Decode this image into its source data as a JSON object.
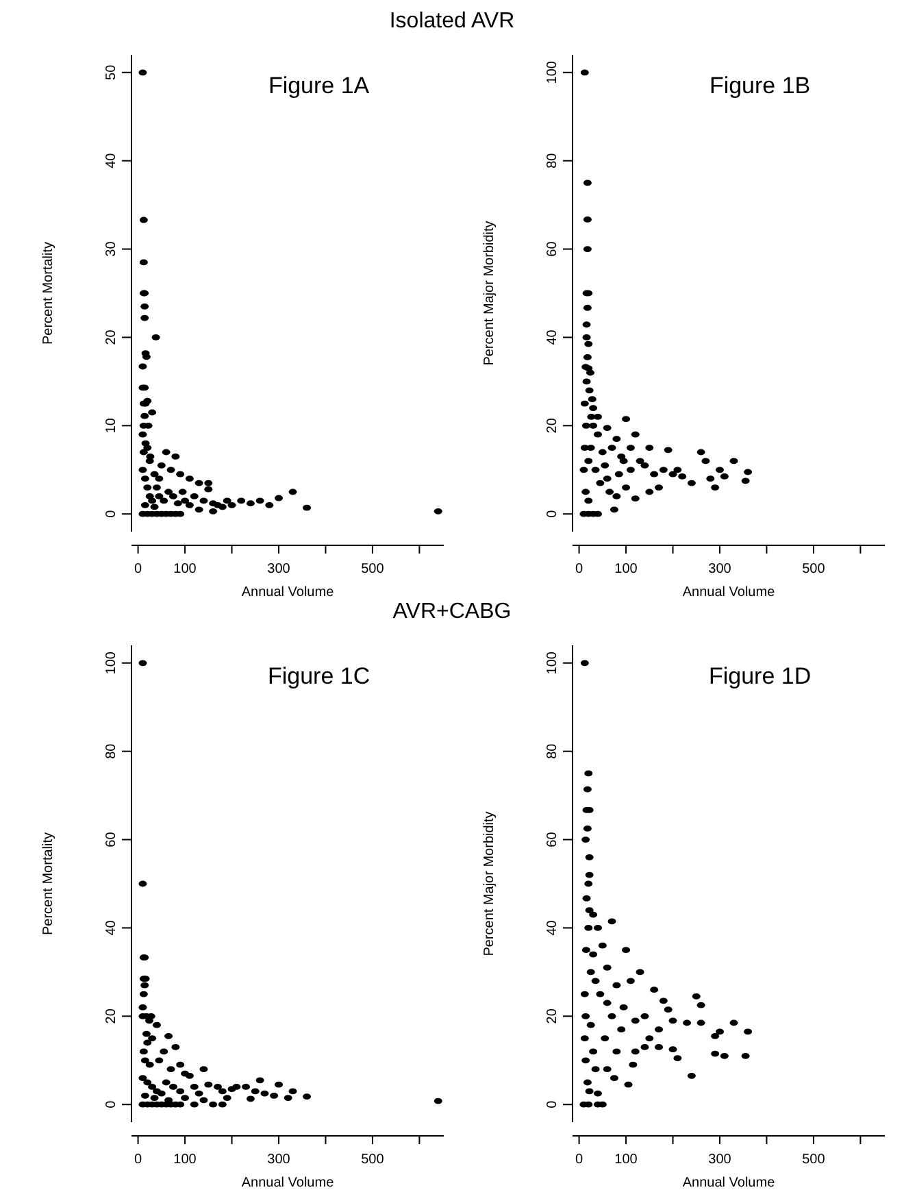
{
  "chart_data": [
    {
      "type": "scatter",
      "title": "Figure 1A",
      "xlabel": "Annual Volume",
      "ylabel": "Percent Mortality",
      "annotations": [
        "Isolated AVR"
      ],
      "marker": "circle",
      "xlim": [
        -14,
        652
      ],
      "ylim": [
        -2,
        52
      ],
      "xticks": [
        0,
        100,
        {
          "value": 200,
          "label": null
        },
        300,
        {
          "value": 400,
          "label": null
        },
        500,
        {
          "value": 600,
          "label": null
        }
      ],
      "yticks": [
        0,
        10,
        20,
        30,
        40,
        50
      ],
      "series": [
        {
          "color": "#000000",
          "x": [
            10,
            12,
            12,
            12,
            14,
            14,
            14,
            38,
            16,
            18,
            10,
            10,
            14,
            16,
            20,
            12,
            30,
            14,
            12,
            22,
            10,
            16,
            12,
            20,
            26,
            60,
            80,
            50,
            70,
            90,
            110,
            130,
            150,
            10,
            15,
            20,
            25,
            30,
            40,
            45,
            55,
            65,
            75,
            85,
            95,
            100,
            120,
            140,
            160,
            170,
            180,
            190,
            200,
            220,
            240,
            260,
            280,
            300,
            330,
            360,
            640,
            10,
            20,
            30,
            40,
            50,
            60,
            70,
            80,
            90,
            15,
            35,
            25,
            35,
            45,
            110,
            150,
            130,
            160
          ],
          "values": [
            50,
            33.3,
            28.5,
            25,
            25,
            23.5,
            22.2,
            20,
            18.2,
            17.8,
            16.7,
            14.3,
            14.3,
            12.5,
            12.8,
            12.5,
            11.5,
            11.1,
            10,
            10,
            9,
            8,
            7,
            7.5,
            6.5,
            7,
            6.5,
            5.5,
            5,
            4.5,
            4,
            3.5,
            3.5,
            5,
            4,
            3,
            2,
            1.5,
            3,
            2,
            1.5,
            2.5,
            2,
            1.2,
            2.5,
            1.5,
            2,
            1.5,
            1.2,
            1,
            0.8,
            1.5,
            1,
            1.5,
            1.2,
            1.5,
            1,
            1.8,
            2.5,
            0.7,
            0.3,
            0,
            0,
            0,
            0,
            0,
            0,
            0,
            0,
            0,
            1,
            0.8,
            6,
            4.5,
            4,
            1,
            2.8,
            0.5,
            0.3
          ]
        }
      ]
    },
    {
      "type": "scatter",
      "title": "Figure 1B",
      "xlabel": "Annual Volume",
      "ylabel": "Percent Major Morbidity",
      "marker": "circle",
      "xlim": [
        -14,
        652
      ],
      "ylim": [
        -4,
        104
      ],
      "xticks": [
        0,
        100,
        {
          "value": 200,
          "label": null
        },
        300,
        {
          "value": 400,
          "label": null
        },
        500,
        {
          "value": 600,
          "label": null
        }
      ],
      "yticks": [
        0,
        20,
        40,
        60,
        80,
        100
      ],
      "series": [
        {
          "color": "#000000",
          "x": [
            12,
            18,
            18,
            18,
            16,
            20,
            18,
            16,
            16,
            20,
            18,
            14,
            20,
            24,
            16,
            22,
            28,
            12,
            30,
            26,
            40,
            100,
            60,
            120,
            80,
            150,
            190,
            260,
            270,
            330,
            300,
            360,
            310,
            280,
            355,
            240,
            200,
            180,
            160,
            140,
            130,
            110,
            90,
            70,
            50,
            40,
            30,
            15,
            12,
            10,
            14,
            20,
            10,
            20,
            30,
            40,
            60,
            80,
            75,
            100,
            120,
            150,
            170,
            220,
            20,
            35,
            45,
            55,
            65,
            85,
            95,
            25,
            110,
            290,
            210
          ],
          "values": [
            100,
            75,
            66.7,
            60,
            50,
            50,
            46.7,
            42.9,
            40,
            38.5,
            35.5,
            33.3,
            33,
            32,
            30,
            28,
            26,
            25,
            24,
            22,
            22,
            21.5,
            19.5,
            18,
            17,
            15,
            14.5,
            14,
            12,
            12,
            10,
            9.5,
            8.5,
            8,
            7.5,
            7,
            9,
            10,
            9,
            11,
            12,
            10,
            13,
            15,
            14,
            18,
            20,
            20,
            15,
            10,
            5,
            3,
            0,
            0,
            0,
            0,
            8,
            4,
            1,
            6,
            3.5,
            5,
            6,
            8.5,
            12,
            10,
            7,
            11,
            5,
            9,
            12,
            15,
            15,
            6,
            10
          ]
        }
      ]
    },
    {
      "type": "scatter",
      "title": "Figure 1C",
      "xlabel": "Annual Volume",
      "ylabel": "Percent Mortality",
      "annotations": [
        "AVR+CABG"
      ],
      "marker": "circle",
      "xlim": [
        -14,
        652
      ],
      "ylim": [
        -4,
        104
      ],
      "xticks": [
        0,
        100,
        {
          "value": 200,
          "label": null
        },
        300,
        {
          "value": 400,
          "label": null
        },
        500,
        {
          "value": 600,
          "label": null
        }
      ],
      "yticks": [
        0,
        20,
        40,
        60,
        80,
        100
      ],
      "series": [
        {
          "color": "#000000",
          "x": [
            10,
            10,
            12,
            14,
            12,
            16,
            14,
            12,
            10,
            10,
            18,
            28,
            24,
            40,
            30,
            65,
            80,
            20,
            12,
            15,
            25,
            45,
            55,
            90,
            70,
            140,
            110,
            100,
            10,
            20,
            30,
            40,
            50,
            60,
            75,
            90,
            120,
            130,
            150,
            170,
            180,
            200,
            210,
            230,
            250,
            260,
            270,
            290,
            300,
            320,
            330,
            360,
            640,
            10,
            20,
            30,
            40,
            50,
            60,
            70,
            80,
            90,
            120,
            160,
            180,
            15,
            35,
            65,
            100,
            140,
            190,
            240,
            18
          ],
          "values": [
            100,
            50,
            33.3,
            33.3,
            28.5,
            28.5,
            27,
            25,
            22,
            20,
            20,
            20,
            19,
            18,
            15,
            15.5,
            13,
            14,
            12,
            10,
            9,
            10,
            12,
            9,
            8,
            8,
            6.5,
            7,
            6,
            5,
            4,
            3,
            2.5,
            5,
            4,
            3,
            4,
            2.5,
            4.5,
            4,
            3,
            3.5,
            4,
            4,
            3,
            5.5,
            2.5,
            2,
            4.5,
            1.5,
            3,
            1.8,
            0.8,
            0,
            0,
            0,
            0,
            0,
            0,
            0,
            0,
            0,
            0,
            0,
            0,
            2,
            1.5,
            1,
            1.5,
            1,
            1.5,
            1.3,
            16
          ]
        }
      ]
    },
    {
      "type": "scatter",
      "title": "Figure 1D",
      "xlabel": "Annual Volume",
      "ylabel": "Percent Major Morbidity",
      "marker": "circle",
      "xlim": [
        -14,
        652
      ],
      "ylim": [
        -4,
        104
      ],
      "xticks": [
        0,
        100,
        {
          "value": 200,
          "label": null
        },
        300,
        {
          "value": 400,
          "label": null
        },
        500,
        {
          "value": 600,
          "label": null
        }
      ],
      "yticks": [
        0,
        20,
        40,
        60,
        80,
        100
      ],
      "series": [
        {
          "color": "#000000",
          "x": [
            12,
            20,
            18,
            16,
            22,
            18,
            14,
            22,
            22,
            20,
            16,
            22,
            30,
            70,
            20,
            40,
            100,
            50,
            30,
            60,
            130,
            110,
            80,
            160,
            180,
            250,
            260,
            190,
            140,
            230,
            260,
            290,
            300,
            330,
            360,
            290,
            310,
            355,
            240,
            200,
            170,
            150,
            120,
            115,
            105,
            90,
            70,
            60,
            45,
            35,
            25,
            15,
            12,
            14,
            12,
            14,
            18,
            22,
            10,
            20,
            40,
            50,
            40,
            60,
            80,
            75,
            30,
            55,
            95,
            120,
            140,
            170,
            200,
            25,
            35,
            210
          ],
          "values": [
            100,
            75,
            71.4,
            66.7,
            66.7,
            62.5,
            60,
            56,
            52,
            50,
            46.7,
            44,
            43,
            41.5,
            40,
            40,
            35,
            36,
            34,
            31,
            30,
            28,
            27,
            26,
            23.5,
            24.5,
            22.5,
            21.5,
            20,
            18.5,
            18.5,
            15.5,
            16.5,
            18.5,
            16.5,
            11.5,
            11,
            11,
            6.5,
            12.5,
            13,
            15,
            12,
            9,
            4.5,
            17,
            20,
            23,
            25,
            28,
            30,
            35,
            25,
            20,
            15,
            10,
            5,
            3,
            0,
            0,
            0,
            0,
            2.5,
            8,
            12,
            6,
            12,
            15,
            22,
            19,
            13,
            17,
            19,
            18,
            8,
            10.5
          ]
        }
      ]
    }
  ]
}
